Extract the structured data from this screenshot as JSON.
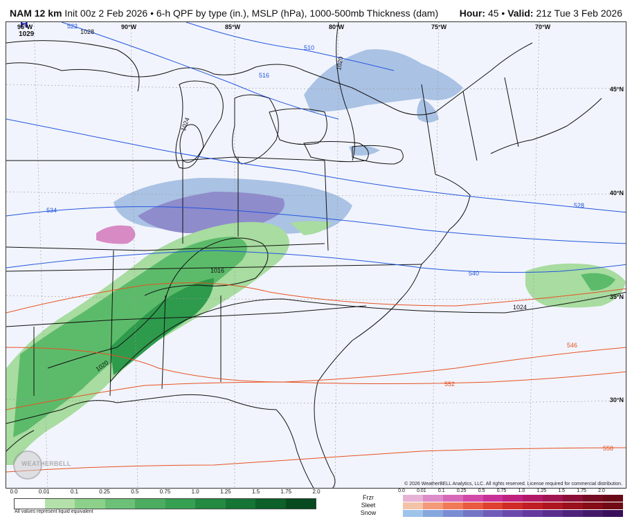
{
  "header": {
    "model": "NAM 12 km",
    "init": "Init 00z 2 Feb 2026",
    "product": "6-h QPF by type (in.), MSLP (hPa), 1000-500mb Thickness (dam)",
    "hour_label": "Hour:",
    "hour_value": "45",
    "valid_label": "Valid:",
    "valid_value": "21z Tue 3 Feb 2026"
  },
  "map": {
    "longitude_labels": [
      "95°W",
      "90°W",
      "85°W",
      "80°W",
      "75°W",
      "70°W"
    ],
    "latitude_labels": [
      "45°N",
      "40°N",
      "35°N",
      "30°N"
    ],
    "high_center": {
      "symbol": "H",
      "value": "1029"
    },
    "isobar_labels": [
      "1028",
      "1024",
      "1020",
      "1016",
      "1024",
      "1020"
    ],
    "thickness_blue_labels": [
      "510",
      "516",
      "522",
      "528",
      "534",
      "540"
    ],
    "thickness_red_labels": [
      "546",
      "552",
      "558"
    ],
    "colors": {
      "thickness_cold": "#2255dd",
      "thickness_warm": "#e85020",
      "isobars": "#111111",
      "rain_light": "#a8dca0",
      "rain_mid": "#5cbb6a",
      "rain_heavy": "#2e9a4c",
      "snow_light": "#aac2e4",
      "snow_mid": "#8f8ccc",
      "freezing_rain": "#d88ac4",
      "background": "#f1f4fc"
    }
  },
  "logo": {
    "text": "WEATHERBELL"
  },
  "copyright": "© 2026 WeatherBELL Analytics, LLC. All rights reserved. License required for commercial distribution.",
  "legend_rain": {
    "ticks": [
      "0.0",
      "0.01",
      "0.1",
      "0.25",
      "0.5",
      "0.75",
      "1.0",
      "1.25",
      "1.5",
      "1.75",
      "2.0"
    ],
    "colors": [
      "#ffffff",
      "#b4e0aa",
      "#8dd08a",
      "#6cc078",
      "#4cad60",
      "#36a052",
      "#238a42",
      "#157535",
      "#0d6029",
      "#084a1f"
    ],
    "note": "All values represent liquid equivalent"
  },
  "legend_types": {
    "ticks": [
      "0.0",
      "0.01",
      "0.1",
      "0.25",
      "0.5",
      "0.75",
      "1.0",
      "1.25",
      "1.5",
      "1.75",
      "2.0"
    ],
    "rows": [
      {
        "label": "Frzr",
        "colors": [
          "#e6b3d6",
          "#dc8cc8",
          "#d66ab8",
          "#d24aa8",
          "#c83098",
          "#c0207e",
          "#b21868",
          "#a01452",
          "#8a1038",
          "#740c22",
          "#680a16"
        ]
      },
      {
        "label": "Sleet",
        "colors": [
          "#f3c3a8",
          "#f39a78",
          "#f07a58",
          "#ea5a40",
          "#e04030",
          "#d02a26",
          "#c01e24",
          "#ae1620",
          "#9a101c",
          "#860c18",
          "#700a14"
        ]
      },
      {
        "label": "Snow",
        "colors": [
          "#9ec4ea",
          "#86a6de",
          "#7a8cd2",
          "#7474c4",
          "#705cb8",
          "#6c48ac",
          "#64389c",
          "#5a2c8c",
          "#4e227a",
          "#421868",
          "#380f58"
        ]
      }
    ]
  }
}
